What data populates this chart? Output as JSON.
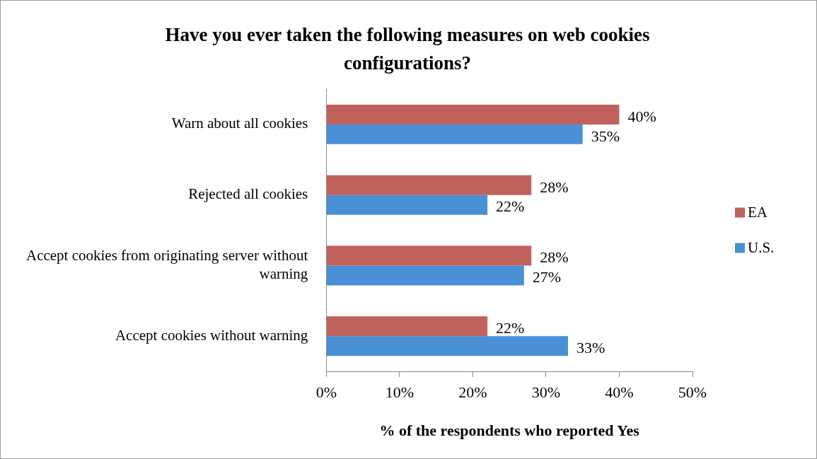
{
  "chart_data": {
    "type": "bar",
    "orientation": "horizontal",
    "title": "Have you ever taken the following measures on web cookies configurations?",
    "xlabel": "% of the respondents who reported Yes",
    "categories": [
      "Warn about all cookies",
      "Rejected all cookies",
      "Accept cookies from originating server without warning",
      "Accept cookies without warning"
    ],
    "series": [
      {
        "name": "EA",
        "color": "#c0615e",
        "values": [
          40,
          28,
          28,
          22
        ],
        "value_labels": [
          "40%",
          "28%",
          "28%",
          "22%"
        ]
      },
      {
        "name": "U.S.",
        "color": "#4a90d6",
        "values": [
          35,
          22,
          27,
          33
        ],
        "value_labels": [
          "35%",
          "22%",
          "27%",
          "33%"
        ]
      }
    ],
    "xlim": [
      0,
      50
    ],
    "xticks": [
      {
        "value": 0,
        "label": "0%"
      },
      {
        "value": 10,
        "label": "10%"
      },
      {
        "value": 20,
        "label": "20%"
      },
      {
        "value": 30,
        "label": "30%"
      },
      {
        "value": 40,
        "label": "40%"
      },
      {
        "value": 50,
        "label": "50%"
      }
    ],
    "grid": false,
    "legend": "right"
  }
}
